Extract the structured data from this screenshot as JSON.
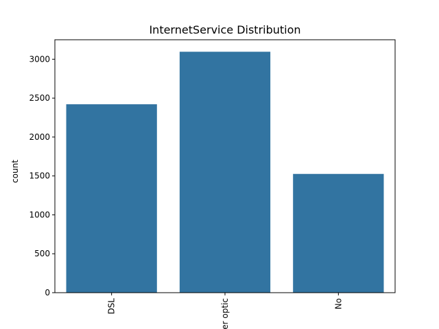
{
  "chart_data": {
    "type": "bar",
    "title": "InternetService Distribution",
    "xlabel": "",
    "ylabel": "count",
    "categories": [
      "DSL",
      "Fiber optic",
      "No"
    ],
    "values": [
      2421,
      3096,
      1526
    ],
    "ylim": [
      0,
      3250
    ],
    "yticks": [
      0,
      500,
      1000,
      1500,
      2000,
      2500,
      3000
    ],
    "bar_color": "#3274a1",
    "grid": false,
    "legend": "none",
    "x_tick_rotation": "vertical"
  }
}
